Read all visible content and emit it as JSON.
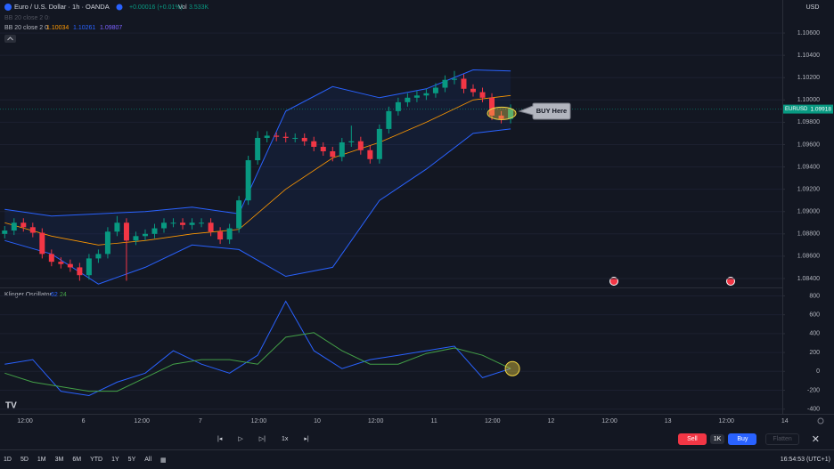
{
  "chart_data": [
    {
      "type": "candlestick",
      "title": "Euro / U.S. Dollar · 1h · OANDA",
      "change": "+0.00016 (+0.01%)",
      "volume_label": "Vol",
      "volume": "3.533K",
      "hidden_indicator": "BB 20 close 2 0",
      "indicator_legend": {
        "name": "BB 20 close 2 0",
        "values": [
          1.10034,
          1.10261,
          1.09807
        ],
        "colors": [
          "#ff9800",
          "#2962ff",
          "#7b61ff"
        ]
      },
      "up_color": "#089981",
      "down_color": "#f23645",
      "open": [
        1.088,
        1.0883,
        1.089,
        1.0886,
        1.0881,
        1.0862,
        1.0855,
        1.0853,
        1.085,
        1.0843,
        1.0858,
        1.0862,
        1.0882,
        1.089,
        1.0874,
        1.0878,
        1.088,
        1.0885,
        1.089,
        1.089,
        1.0888,
        1.089,
        1.089,
        1.0882,
        1.0875,
        1.0885,
        1.091,
        1.0946,
        1.0966,
        1.0968,
        1.0967,
        1.0966,
        1.0966,
        1.0963,
        1.0958,
        1.0954,
        1.0949,
        1.0962,
        1.0963,
        1.0955,
        1.0947,
        1.0974,
        1.099,
        1.0998,
        1.1002,
        1.1004,
        1.1006,
        1.1011,
        1.1018,
        1.1019,
        1.101,
        1.1007,
        1.1002,
        1.0986,
        1.0983
      ],
      "high": [
        1.0887,
        1.0894,
        1.0894,
        1.089,
        1.0885,
        1.0866,
        1.0859,
        1.0857,
        1.0854,
        1.0862,
        1.0866,
        1.0886,
        1.0896,
        1.0894,
        1.0882,
        1.0884,
        1.0889,
        1.0894,
        1.0894,
        1.0894,
        1.0894,
        1.0894,
        1.0894,
        1.0886,
        1.0889,
        1.0914,
        1.095,
        1.0972,
        1.0972,
        1.0971,
        1.0971,
        1.097,
        1.097,
        1.0967,
        1.0962,
        1.0958,
        1.0966,
        1.0977,
        1.0967,
        1.0959,
        1.0978,
        1.0994,
        1.1002,
        1.1006,
        1.1008,
        1.101,
        1.1015,
        1.1022,
        1.1026,
        1.1023,
        1.1014,
        1.1011,
        1.1006,
        1.099,
        1.0996
      ],
      "low": [
        1.0876,
        1.0879,
        1.0882,
        1.0877,
        1.0858,
        1.0851,
        1.0849,
        1.0846,
        1.0838,
        1.0839,
        1.0854,
        1.0858,
        1.0878,
        1.0838,
        1.087,
        1.0874,
        1.0876,
        1.0881,
        1.0886,
        1.0884,
        1.0884,
        1.0886,
        1.0878,
        1.0871,
        1.0871,
        1.0881,
        1.0906,
        1.0942,
        1.0962,
        1.0963,
        1.0962,
        1.0962,
        1.0959,
        1.0954,
        1.095,
        1.0945,
        1.0945,
        1.0958,
        1.0951,
        1.0943,
        1.0943,
        1.097,
        1.0986,
        1.0994,
        1.0998,
        1.1,
        1.1002,
        1.1007,
        1.1014,
        1.1006,
        1.1003,
        1.0998,
        1.0982,
        1.0979,
        1.0979
      ],
      "close": [
        1.0883,
        1.089,
        1.0886,
        1.0881,
        1.0862,
        1.0855,
        1.0853,
        1.085,
        1.0843,
        1.0858,
        1.0862,
        1.0882,
        1.089,
        1.0874,
        1.0878,
        1.088,
        1.0885,
        1.089,
        1.089,
        1.0888,
        1.089,
        1.089,
        1.0882,
        1.0875,
        1.0885,
        1.091,
        1.0946,
        1.0966,
        1.0968,
        1.0967,
        1.0966,
        1.0966,
        1.0963,
        1.0958,
        1.0954,
        1.0949,
        1.0962,
        1.0963,
        1.0955,
        1.0947,
        1.0974,
        1.099,
        1.0998,
        1.1002,
        1.1004,
        1.1006,
        1.1011,
        1.1018,
        1.1019,
        1.101,
        1.1007,
        1.1002,
        1.0986,
        1.0983,
        1.0992
      ],
      "overlay": {
        "x": [
          0,
          5,
          10,
          15,
          20,
          25,
          30,
          35,
          40,
          45,
          50,
          54
        ],
        "upper": [
          1.0902,
          1.0896,
          1.0898,
          1.09,
          1.0904,
          1.0898,
          1.099,
          1.1012,
          1.1002,
          1.101,
          1.1027,
          1.1026
        ],
        "basis": [
          1.089,
          1.0878,
          1.087,
          1.0874,
          1.088,
          1.0884,
          1.092,
          1.0948,
          1.0962,
          1.098,
          1.1,
          1.1004
        ],
        "lower": [
          1.0874,
          1.0862,
          1.0835,
          1.085,
          1.087,
          1.0866,
          1.0842,
          1.085,
          1.091,
          1.0938,
          1.097,
          1.0974
        ],
        "basis_color": "#ff9800",
        "band_color": "#2962ff"
      },
      "annotation": "BUY Here",
      "symbol": "EURUSD",
      "last_price": 1.09918,
      "xlim": [
        -0.5,
        83
      ],
      "ylim": [
        1.0832,
        1.1076
      ],
      "yticks": [
        {
          "value": 1.106,
          "label": "1.10600"
        },
        {
          "value": 1.104,
          "label": "1.10400"
        },
        {
          "value": 1.102,
          "label": "1.10200"
        },
        {
          "value": 1.1,
          "label": "1.10000"
        },
        {
          "value": 1.098,
          "label": "1.09800"
        },
        {
          "value": 1.096,
          "label": "1.09600"
        },
        {
          "value": 1.094,
          "label": "1.09400"
        },
        {
          "value": 1.092,
          "label": "1.09200"
        },
        {
          "value": 1.09,
          "label": "1.09000"
        },
        {
          "value": 1.088,
          "label": "1.08800"
        },
        {
          "value": 1.086,
          "label": "1.08600"
        },
        {
          "value": 1.084,
          "label": "1.08400"
        }
      ],
      "grid": true
    },
    {
      "type": "line",
      "title": "Klinger Oscillator",
      "legend_values": [
        62,
        24
      ],
      "series": [
        {
          "color": "#2962ff",
          "x": [
            0,
            3,
            6,
            9,
            12,
            15,
            18,
            21,
            24,
            27,
            30,
            33,
            36,
            39,
            42,
            45,
            48,
            51,
            54
          ],
          "values": [
            76,
            124,
            -210,
            -257,
            -114,
            -19,
            219,
            76,
            -19,
            171,
            743,
            219,
            29,
            124,
            171,
            219,
            267,
            -67,
            29
          ]
        },
        {
          "color": "#43a047",
          "x": [
            0,
            3,
            6,
            9,
            12,
            15,
            18,
            21,
            24,
            27,
            30,
            33,
            36,
            39,
            42,
            45,
            48,
            51,
            54
          ],
          "values": [
            -19,
            -114,
            -162,
            -210,
            -210,
            -67,
            76,
            124,
            124,
            76,
            362,
            410,
            219,
            76,
            76,
            190,
            248,
            171,
            29
          ]
        }
      ],
      "xlim": [
        -0.5,
        83
      ],
      "ylim": [
        -450,
        880
      ],
      "yticks": [
        800,
        600,
        400,
        200,
        0,
        -200,
        -400
      ],
      "time_labels": [
        "12:00",
        "6",
        "12:00",
        "7",
        "12:00",
        "10",
        "12:00",
        "11",
        "12:00",
        "12",
        "12:00",
        "13",
        "12:00",
        "14"
      ],
      "grid": true
    }
  ],
  "ui": {
    "currency": "USD",
    "timeframes": [
      "1D",
      "5D",
      "1M",
      "3M",
      "6M",
      "YTD",
      "1Y",
      "5Y",
      "All"
    ],
    "speed": "1x",
    "sell": "Sell",
    "quantity": "1K",
    "buy": "Buy",
    "flatten": "Flatten",
    "clock": "16:54:53 (UTC+1)"
  }
}
